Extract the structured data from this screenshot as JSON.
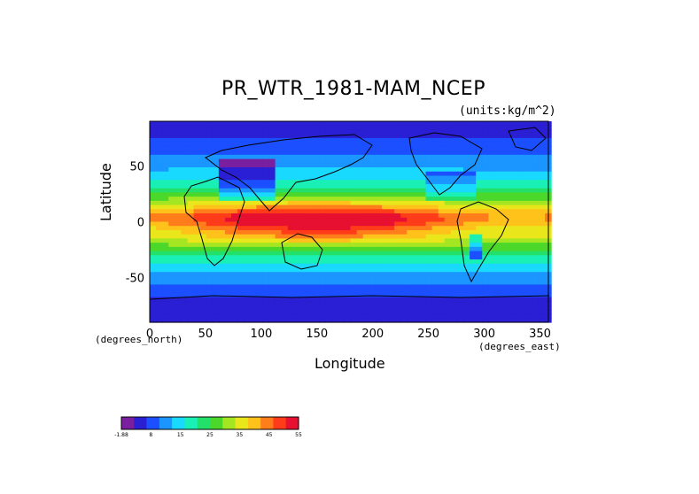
{
  "chart_data": {
    "type": "heatmap",
    "title": "PR_WTR_1981-MAM_NCEP",
    "units": "(units:kg/m^2)",
    "xlabel": "Longitude",
    "ylabel": "Latitude",
    "x_unit": "(degrees_east)",
    "y_unit": "(degrees_north)",
    "xlim": [
      0,
      357.5
    ],
    "ylim": [
      -90,
      90
    ],
    "x_ticks": [
      0,
      50,
      100,
      150,
      200,
      250,
      300,
      350
    ],
    "y_ticks": [
      50,
      0,
      -50
    ],
    "colorbar": {
      "tick_labels": [
        "-1.88",
        "8",
        "15",
        "25",
        "35",
        "45",
        "55"
      ],
      "colors": [
        "#7a1fa0",
        "#2b1fd4",
        "#1b4fff",
        "#1b95ff",
        "#19d9ff",
        "#19f0b5",
        "#22e06a",
        "#4bd82a",
        "#a5e622",
        "#e9e61b",
        "#ffc21a",
        "#ff7d1a",
        "#ff3c1a",
        "#e81030"
      ]
    },
    "zonal_mean_profile": {
      "lat": [
        90,
        75,
        60,
        45,
        30,
        15,
        5,
        0,
        -5,
        -15,
        -30,
        -45,
        -60,
        -75,
        -90
      ],
      "value": [
        3,
        6,
        10,
        15,
        22,
        38,
        50,
        50,
        45,
        38,
        22,
        15,
        9,
        4,
        2
      ]
    }
  }
}
